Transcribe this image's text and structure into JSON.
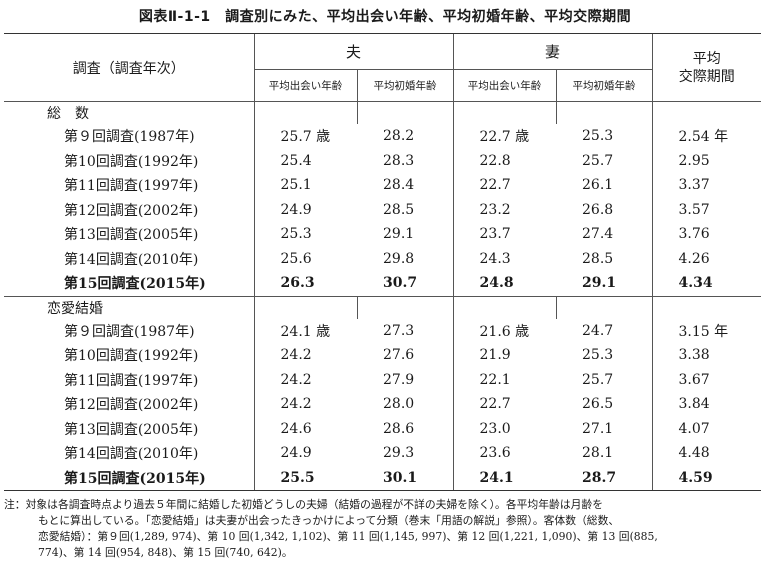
{
  "title": "図表Ⅱ-1-1　調査別にみた、平均出会い年齢、平均初婚年齢、平均交際期間",
  "header": {
    "survey_col": "調査（調査年次）",
    "husband": "夫",
    "wife": "妻",
    "avg_period_line1": "平均",
    "avg_period_line2": "交際期間",
    "meet_age": "平均出会い年齢",
    "marry_age": "平均初婚年齢"
  },
  "sections": [
    {
      "name": "総　数",
      "rows": [
        {
          "label": "第９回調査(1987年)",
          "h_meet": "25.7 歳",
          "h_marry": "28.2",
          "w_meet": "22.7 歳",
          "w_marry": "25.3",
          "period": "2.54 年",
          "bold": false
        },
        {
          "label": "第10回調査(1992年)",
          "h_meet": "25.4",
          "h_marry": "28.3",
          "w_meet": "22.8",
          "w_marry": "25.7",
          "period": "2.95",
          "bold": false
        },
        {
          "label": "第11回調査(1997年)",
          "h_meet": "25.1",
          "h_marry": "28.4",
          "w_meet": "22.7",
          "w_marry": "26.1",
          "period": "3.37",
          "bold": false
        },
        {
          "label": "第12回調査(2002年)",
          "h_meet": "24.9",
          "h_marry": "28.5",
          "w_meet": "23.2",
          "w_marry": "26.8",
          "period": "3.57",
          "bold": false
        },
        {
          "label": "第13回調査(2005年)",
          "h_meet": "25.3",
          "h_marry": "29.1",
          "w_meet": "23.7",
          "w_marry": "27.4",
          "period": "3.76",
          "bold": false
        },
        {
          "label": "第14回調査(2010年)",
          "h_meet": "25.6",
          "h_marry": "29.8",
          "w_meet": "24.3",
          "w_marry": "28.5",
          "period": "4.26",
          "bold": false
        },
        {
          "label": "第15回調査(2015年)",
          "h_meet": "26.3",
          "h_marry": "30.7",
          "w_meet": "24.8",
          "w_marry": "29.1",
          "period": "4.34",
          "bold": true
        }
      ]
    },
    {
      "name": "恋愛結婚",
      "rows": [
        {
          "label": "第９回調査(1987年)",
          "h_meet": "24.1 歳",
          "h_marry": "27.3",
          "w_meet": "21.6 歳",
          "w_marry": "24.7",
          "period": "3.15 年",
          "bold": false
        },
        {
          "label": "第10回調査(1992年)",
          "h_meet": "24.2",
          "h_marry": "27.6",
          "w_meet": "21.9",
          "w_marry": "25.3",
          "period": "3.38",
          "bold": false
        },
        {
          "label": "第11回調査(1997年)",
          "h_meet": "24.2",
          "h_marry": "27.9",
          "w_meet": "22.1",
          "w_marry": "25.7",
          "period": "3.67",
          "bold": false
        },
        {
          "label": "第12回調査(2002年)",
          "h_meet": "24.2",
          "h_marry": "28.0",
          "w_meet": "22.7",
          "w_marry": "26.5",
          "period": "3.84",
          "bold": false
        },
        {
          "label": "第13回調査(2005年)",
          "h_meet": "24.6",
          "h_marry": "28.6",
          "w_meet": "23.0",
          "w_marry": "27.1",
          "period": "4.07",
          "bold": false
        },
        {
          "label": "第14回調査(2010年)",
          "h_meet": "24.9",
          "h_marry": "29.3",
          "w_meet": "23.6",
          "w_marry": "28.1",
          "period": "4.48",
          "bold": false
        },
        {
          "label": "第15回調査(2015年)",
          "h_meet": "25.5",
          "h_marry": "30.1",
          "w_meet": "24.1",
          "w_marry": "28.7",
          "period": "4.59",
          "bold": true
        }
      ]
    }
  ],
  "note": {
    "line1": "注：対象は各調査時点より過去５年間に結婚した初婚どうしの夫婦（結婚の過程が不詳の夫婦を除く）。各平均年齢は月齢を",
    "line2": "もとに算出している。「恋愛結婚」は夫妻が出会ったきっかけによって分類（巻末「用語の解説」参照）。客体数（総数、",
    "line3": "恋愛結婚）：第９回(1,289, 974)、第 10 回(1,342, 1,102)、第 11 回(1,145, 997)、第 12 回(1,221, 1,090)、第 13 回(885,",
    "line4": "774)、第 14 回(954, 848)、第 15 回(740, 642)。"
  }
}
